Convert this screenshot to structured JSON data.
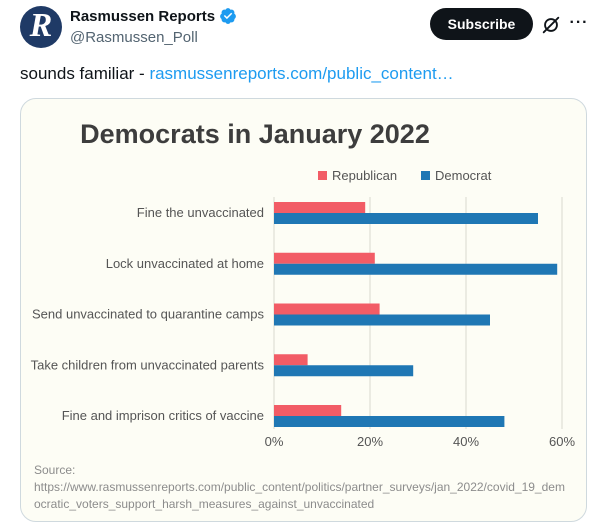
{
  "author": {
    "display_name": "Rasmussen Reports",
    "handle": "@Rasmussen_Poll",
    "avatar_letter": "R"
  },
  "actions": {
    "subscribe_label": "Subscribe",
    "more_label": "···"
  },
  "tweet": {
    "text": "sounds familiar - ",
    "link_text": "rasmussenreports.com/public_content…"
  },
  "chart_data": {
    "type": "bar",
    "orientation": "horizontal",
    "title": "Democrats in January 2022",
    "categories": [
      "Fine the unvaccinated",
      "Lock unvaccinated at home",
      "Send unvaccinated to quarantine camps",
      "Take children from unvaccinated parents",
      "Fine and imprison critics of vaccine"
    ],
    "series": [
      {
        "name": "Republican",
        "color": "#f25c66",
        "values": [
          19,
          21,
          22,
          7,
          14
        ]
      },
      {
        "name": "Democrat",
        "color": "#1f77b4",
        "values": [
          55,
          59,
          45,
          29,
          48
        ]
      }
    ],
    "xlim": [
      0,
      60
    ],
    "xticks": [
      "0%",
      "20%",
      "40%",
      "60%"
    ],
    "grid": true,
    "legend_position": "top",
    "source_lines": [
      "Source:",
      "https://www.rasmussenreports.com/public_content/politics/partner_surveys/jan_2022/covid_19_dem",
      "ocratic_voters_support_harsh_measures_against_unvaccinated"
    ]
  },
  "colors": {
    "link": "#1d9bf0",
    "verified": "#1d9bf0",
    "chart_background": "#fdfdf5"
  }
}
